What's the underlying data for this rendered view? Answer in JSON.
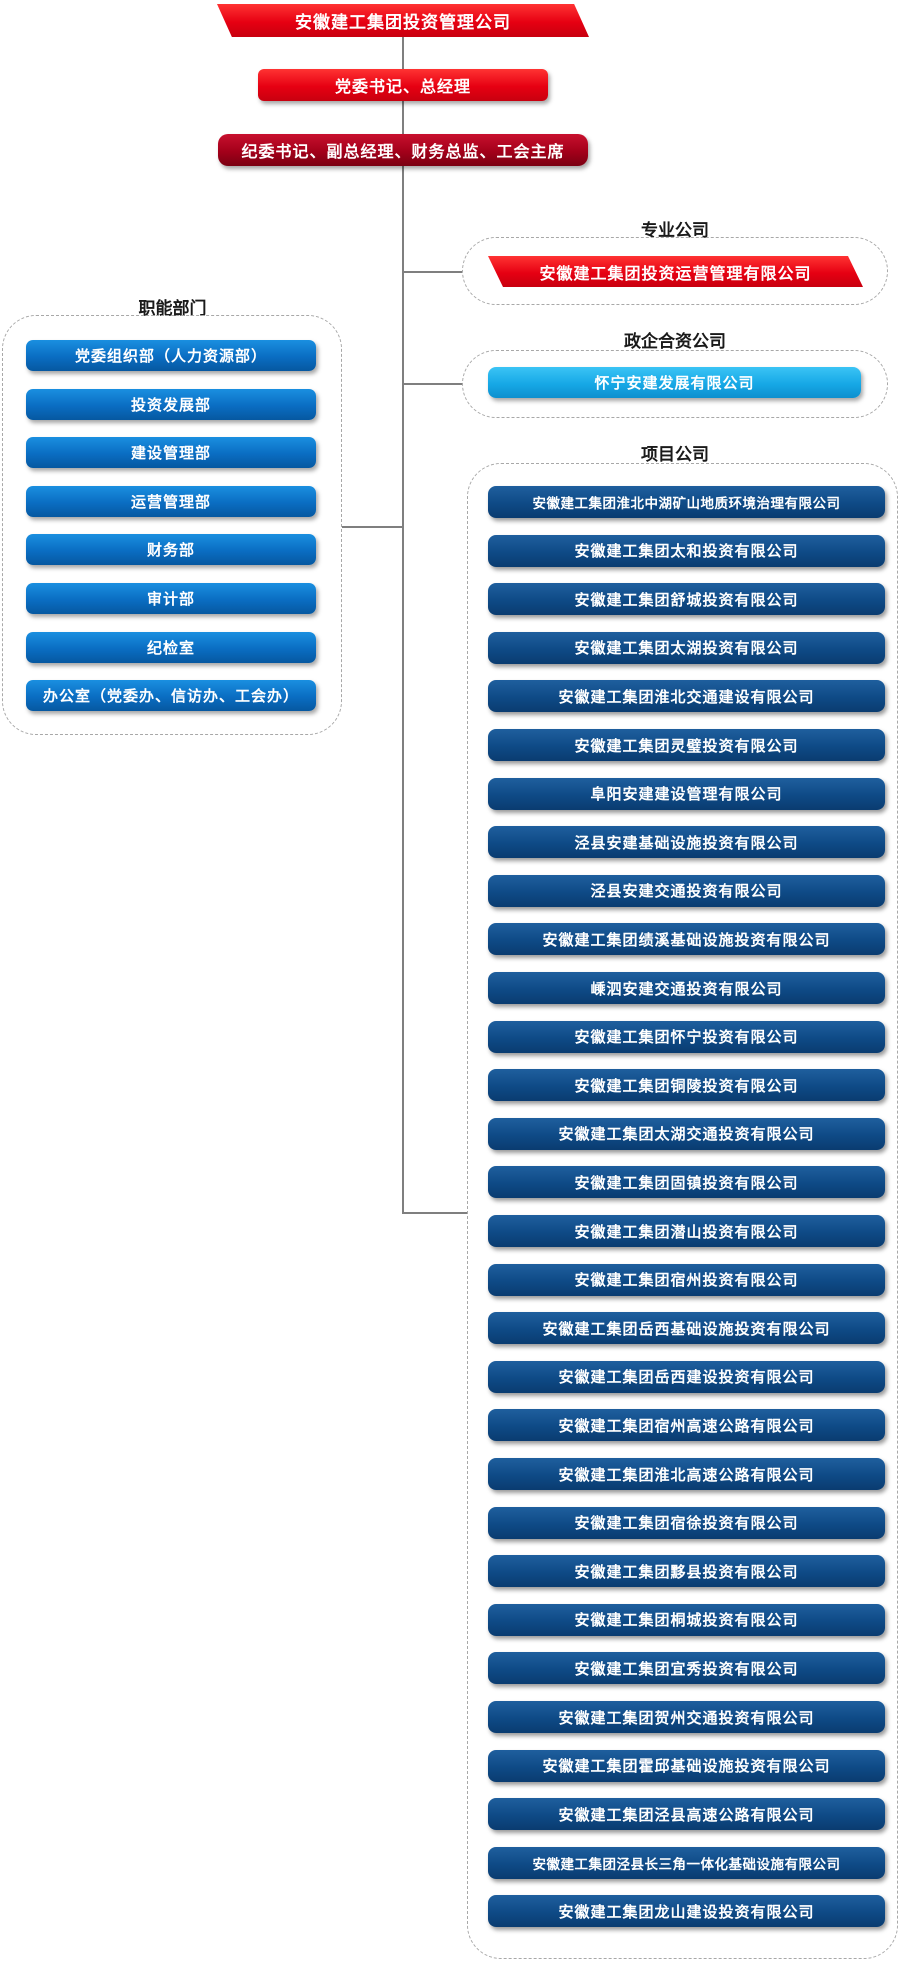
{
  "top": {
    "company": "安徽建工集团投资管理公司",
    "leader": "党委书记、总经理",
    "deputies": "纪委书记、副总经理、财务总监、工会主席"
  },
  "groups": {
    "functional": "职能部门",
    "professional": "专业公司",
    "jointventure": "政企合资公司",
    "projects": "项目公司"
  },
  "functional_departments": [
    "党委组织部（人力资源部）",
    "投资发展部",
    "建设管理部",
    "运营管理部",
    "财务部",
    "审计部",
    "纪检室",
    "办公室（党委办、信访办、工会办）"
  ],
  "professional_company": "安徽建工集团投资运营管理有限公司",
  "jointventure_company": "怀宁安建发展有限公司",
  "project_companies": [
    "安徽建工集团淮北中湖矿山地质环境治理有限公司",
    "安徽建工集团太和投资有限公司",
    "安徽建工集团舒城投资有限公司",
    "安徽建工集团太湖投资有限公司",
    "安徽建工集团淮北交通建设有限公司",
    "安徽建工集团灵璧投资有限公司",
    "阜阳安建建设管理有限公司",
    "泾县安建基础设施投资有限公司",
    "泾县安建交通投资有限公司",
    "安徽建工集团绩溪基础设施投资有限公司",
    "嵊泗安建交通投资有限公司",
    "安徽建工集团怀宁投资有限公司",
    "安徽建工集团铜陵投资有限公司",
    "安徽建工集团太湖交通投资有限公司",
    "安徽建工集团固镇投资有限公司",
    "安徽建工集团潜山投资有限公司",
    "安徽建工集团宿州投资有限公司",
    "安徽建工集团岳西基础设施投资有限公司",
    "安徽建工集团岳西建设投资有限公司",
    "安徽建工集团宿州高速公路有限公司",
    "安徽建工集团淮北高速公路有限公司",
    "安徽建工集团宿徐投资有限公司",
    "安徽建工集团黟县投资有限公司",
    "安徽建工集团桐城投资有限公司",
    "安徽建工集团宜秀投资有限公司",
    "安徽建工集团贺州交通投资有限公司",
    "安徽建工集团霍邱基础设施投资有限公司",
    "安徽建工集团泾县高速公路有限公司",
    "安徽建工集团泾县长三角一体化基础设施有限公司",
    "安徽建工集团龙山建设投资有限公司"
  ],
  "colors": {
    "top_red": "#e60012",
    "deputy_red": "#a3001a",
    "department_blue": "#0a6dc2",
    "jointventure_blue": "#16a8e6",
    "project_navy": "#0e4a86",
    "connector_gray": "#7f7f7f"
  }
}
